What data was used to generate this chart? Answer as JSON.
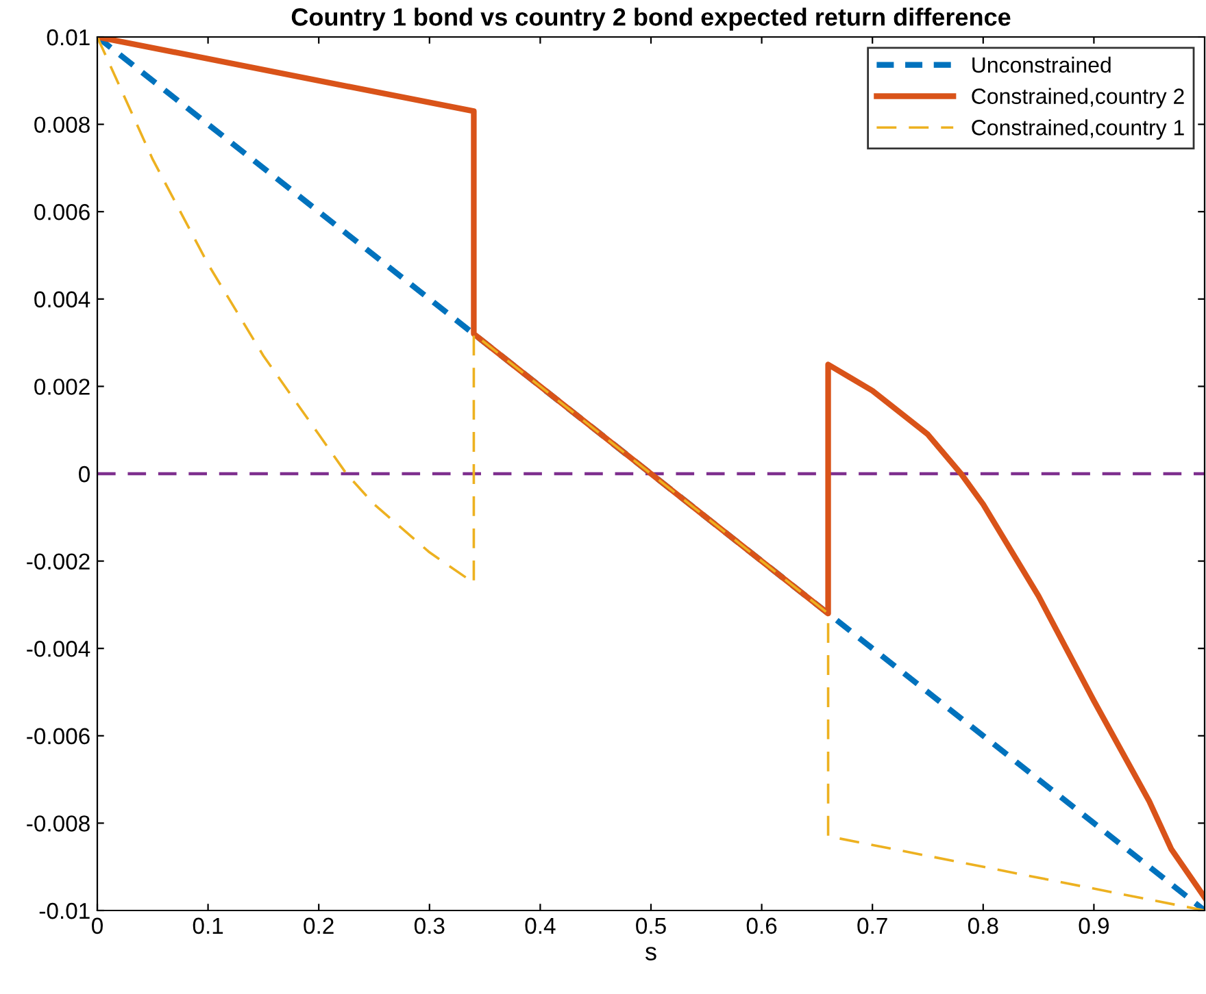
{
  "chart_data": {
    "type": "line",
    "title": "Country 1 bond vs country 2 bond expected return difference",
    "xlabel": "s",
    "xlim": [
      0,
      1
    ],
    "ylim": [
      -0.01,
      0.01
    ],
    "xticks": [
      0,
      0.1,
      0.2,
      0.3,
      0.4,
      0.5,
      0.6,
      0.7,
      0.8,
      0.9
    ],
    "yticks": [
      {
        "value": -0.01,
        "label": "-0.01"
      },
      {
        "value": -0.008,
        "label": "-0.008"
      },
      {
        "value": -0.006,
        "label": "-0.006"
      },
      {
        "value": -0.004,
        "label": "-0.004"
      },
      {
        "value": -0.002,
        "label": "-0.002"
      },
      0,
      0.002,
      0.004,
      0.006,
      0.008,
      0.01
    ],
    "grid": false,
    "legend": "top right",
    "series": [
      {
        "name": "Unconstrained",
        "color": "#0072bd",
        "line_style": "dashed",
        "x": [
          0,
          1
        ],
        "values": [
          0.01,
          -0.01
        ]
      },
      {
        "name": "Constrained,country 2",
        "color": "#d95319",
        "line_style": "solid",
        "x": [
          0,
          0.34,
          0.34,
          0.66,
          0.66,
          0.68,
          0.7,
          0.72,
          0.75,
          0.78,
          0.8,
          0.85,
          0.9,
          0.95,
          0.97,
          1
        ],
        "values": [
          0.01,
          0.0083,
          0.0032,
          -0.0032,
          0.0025,
          0.0022,
          0.0019,
          0.0015,
          0.0009,
          0,
          -0.0007,
          -0.0028,
          -0.0052,
          -0.0075,
          -0.0086,
          -0.0097
        ]
      },
      {
        "name": "Constrained,country 1",
        "color": "#edb120",
        "line_style": "dashed",
        "x": [
          0,
          0.05,
          0.1,
          0.15,
          0.2,
          0.225,
          0.25,
          0.3,
          0.34,
          0.34,
          0.66,
          0.66,
          1
        ],
        "values": [
          0.01,
          0.0072,
          0.0048,
          0.0027,
          0.0009,
          0,
          -0.0007,
          -0.0018,
          -0.0025,
          0.0032,
          -0.0032,
          -0.0083,
          -0.01
        ]
      }
    ],
    "ref_lines": [
      {
        "axis": "y",
        "value": 0,
        "color": "#7e2f8e",
        "line_style": "dashed"
      }
    ]
  }
}
